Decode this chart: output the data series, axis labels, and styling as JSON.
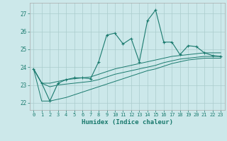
{
  "xlabel": "Humidex (Indice chaleur)",
  "background_color": "#cce8ea",
  "grid_color": "#aacccc",
  "line_color": "#1a7a6e",
  "xlim": [
    -0.5,
    23.5
  ],
  "ylim": [
    21.6,
    27.6
  ],
  "yticks": [
    22,
    23,
    24,
    25,
    26,
    27
  ],
  "xticks": [
    0,
    1,
    2,
    3,
    4,
    5,
    6,
    7,
    8,
    9,
    10,
    11,
    12,
    13,
    14,
    15,
    16,
    17,
    18,
    19,
    20,
    21,
    22,
    23
  ],
  "series1_x": [
    0,
    1,
    2,
    3,
    4,
    5,
    6,
    7,
    8,
    9,
    10,
    11,
    12,
    13,
    14,
    15,
    16,
    17,
    18,
    19,
    20,
    21,
    22,
    23
  ],
  "series1_y": [
    23.9,
    23.1,
    22.1,
    23.1,
    23.3,
    23.4,
    23.4,
    23.35,
    24.3,
    25.8,
    25.9,
    25.3,
    25.6,
    24.3,
    26.6,
    27.2,
    25.4,
    25.4,
    24.7,
    25.2,
    25.15,
    24.8,
    24.65,
    24.6
  ],
  "series2_x": [
    0,
    1,
    2,
    3,
    4,
    5,
    6,
    7,
    8,
    9,
    10,
    11,
    12,
    13,
    14,
    15,
    16,
    17,
    18,
    19,
    20,
    21,
    22,
    23
  ],
  "series2_y": [
    23.9,
    23.1,
    23.1,
    23.2,
    23.3,
    23.35,
    23.4,
    23.45,
    23.6,
    23.75,
    23.9,
    24.0,
    24.1,
    24.2,
    24.3,
    24.4,
    24.5,
    24.6,
    24.65,
    24.7,
    24.75,
    24.8,
    24.8,
    24.8
  ],
  "series3_x": [
    0,
    1,
    2,
    3,
    4,
    5,
    6,
    7,
    8,
    9,
    10,
    11,
    12,
    13,
    14,
    15,
    16,
    17,
    18,
    19,
    20,
    21,
    22,
    23
  ],
  "series3_y": [
    23.9,
    23.1,
    22.9,
    23.0,
    23.05,
    23.1,
    23.15,
    23.2,
    23.3,
    23.45,
    23.6,
    23.7,
    23.8,
    23.9,
    24.0,
    24.1,
    24.25,
    24.35,
    24.45,
    24.5,
    24.55,
    24.6,
    24.6,
    24.6
  ],
  "series4_x": [
    0,
    1,
    2,
    3,
    4,
    5,
    6,
    7,
    8,
    9,
    10,
    11,
    12,
    13,
    14,
    15,
    16,
    17,
    18,
    19,
    20,
    21,
    22,
    23
  ],
  "series4_y": [
    23.9,
    22.1,
    22.1,
    22.2,
    22.3,
    22.45,
    22.6,
    22.75,
    22.9,
    23.05,
    23.2,
    23.35,
    23.5,
    23.65,
    23.8,
    23.9,
    24.05,
    24.2,
    24.3,
    24.4,
    24.45,
    24.5,
    24.5,
    24.5
  ]
}
